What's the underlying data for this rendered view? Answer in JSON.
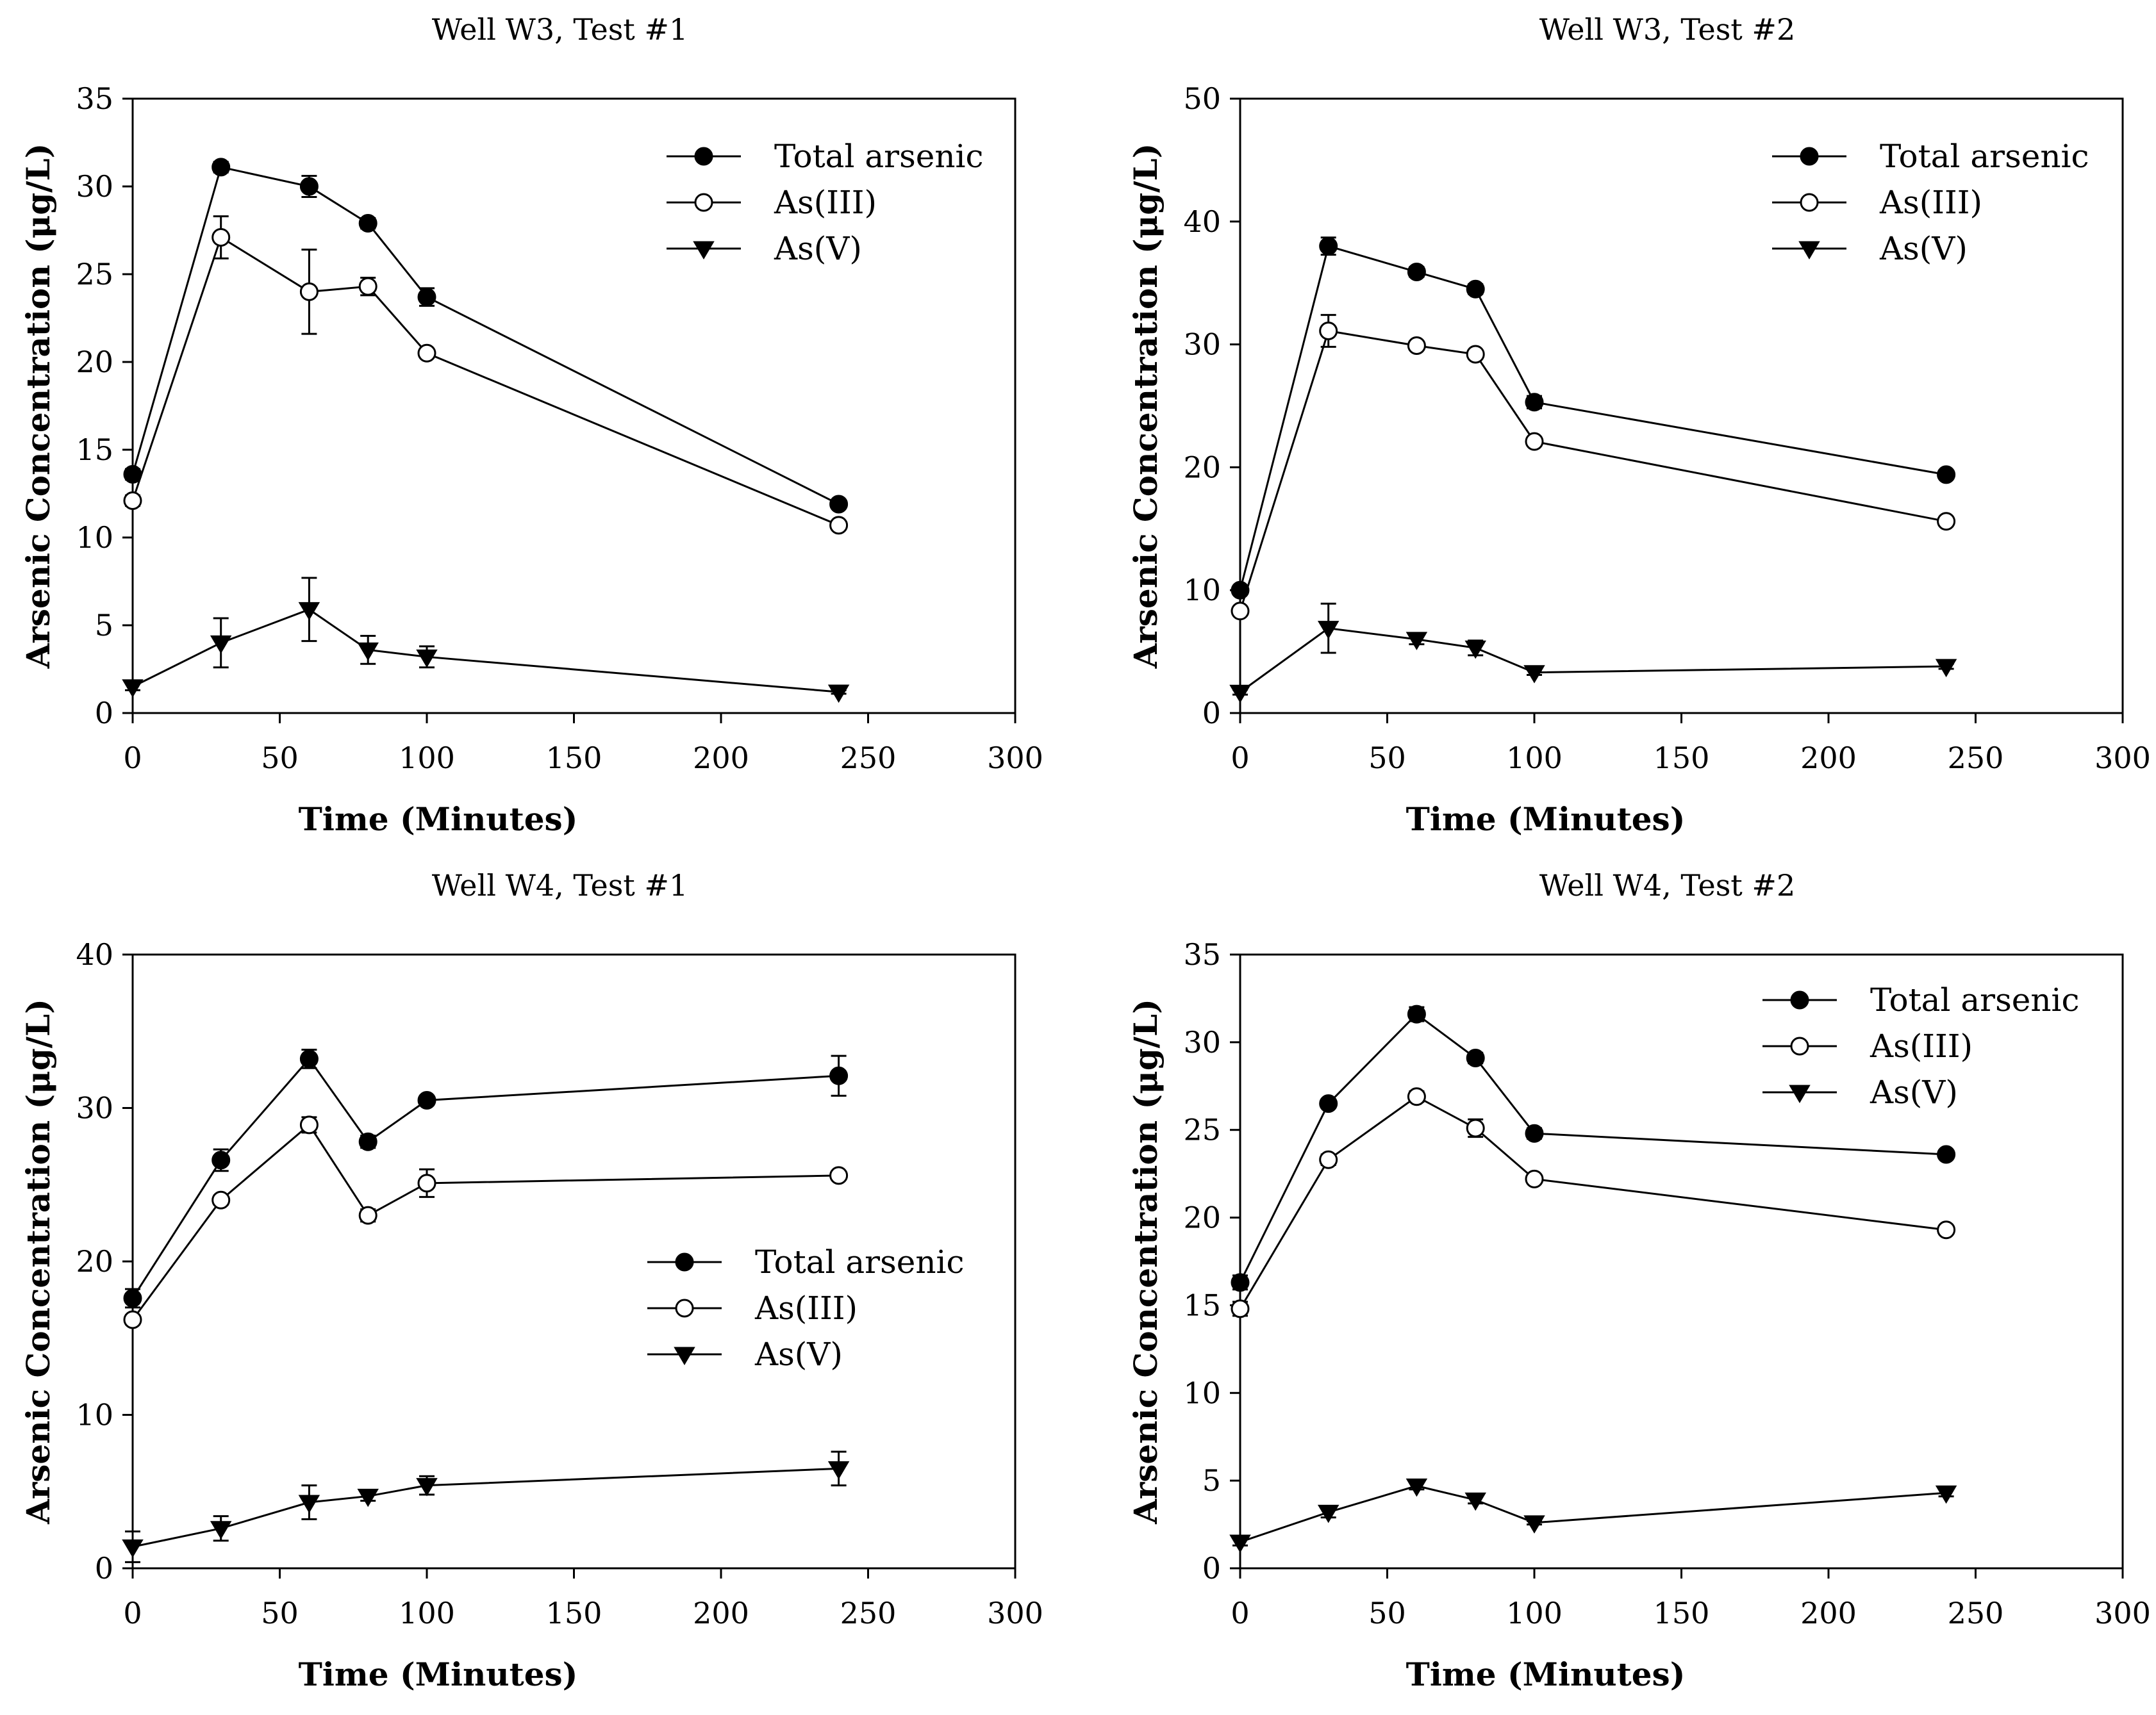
{
  "chart_data": [
    {
      "type": "line",
      "title": "Well W3, Test #1",
      "xlabel": "Time (Minutes)",
      "ylabel": "Arsenic Concentration (μg/L)",
      "xlim": [
        0,
        300
      ],
      "ylim": [
        0,
        35
      ],
      "xticks": [
        "0",
        "50",
        "100",
        "150",
        "200",
        "250",
        "300"
      ],
      "yticks": [
        "0",
        "5",
        "10",
        "15",
        "20",
        "25",
        "30",
        "35"
      ],
      "legend_position": "top-right",
      "x": [
        0,
        30,
        60,
        80,
        100,
        240
      ],
      "series": [
        {
          "name": "Total arsenic",
          "marker": "filled-circle",
          "values": [
            13.6,
            31.1,
            30.0,
            27.9,
            23.7,
            11.9
          ],
          "errors": [
            0.3,
            0.3,
            0.6,
            0.3,
            0.5,
            0.2
          ]
        },
        {
          "name": "As(III)",
          "marker": "open-circle",
          "values": [
            12.1,
            27.1,
            24.0,
            24.3,
            20.5,
            10.7
          ],
          "errors": [
            0.3,
            1.2,
            2.4,
            0.5,
            0.2,
            0.2
          ]
        },
        {
          "name": "As(V)",
          "marker": "filled-triangle-down",
          "values": [
            1.5,
            4.0,
            5.9,
            3.6,
            3.2,
            1.2
          ],
          "errors": [
            0.2,
            1.4,
            1.8,
            0.8,
            0.6,
            0.1
          ]
        }
      ]
    },
    {
      "type": "line",
      "title": "Well W3, Test #2",
      "xlabel": "Time (Minutes)",
      "ylabel": "Arsenic Concentration (μg/L)",
      "xlim": [
        0,
        300
      ],
      "ylim": [
        0,
        50
      ],
      "xticks": [
        "0",
        "50",
        "100",
        "150",
        "200",
        "250",
        "300"
      ],
      "yticks": [
        "0",
        "10",
        "20",
        "30",
        "40",
        "50"
      ],
      "legend_position": "top-right",
      "x": [
        0,
        30,
        60,
        80,
        100,
        240
      ],
      "series": [
        {
          "name": "Total arsenic",
          "marker": "filled-circle",
          "values": [
            10.0,
            38.0,
            35.9,
            34.5,
            25.3,
            19.4
          ],
          "errors": [
            0.3,
            0.7,
            0.4,
            0.4,
            0.5,
            0.2
          ]
        },
        {
          "name": "As(III)",
          "marker": "open-circle",
          "values": [
            8.3,
            31.1,
            29.9,
            29.2,
            22.1,
            15.6
          ],
          "errors": [
            0.3,
            1.3,
            0.3,
            0.3,
            0.3,
            0.2
          ]
        },
        {
          "name": "As(V)",
          "marker": "filled-triangle-down",
          "values": [
            1.7,
            6.9,
            6.0,
            5.3,
            3.3,
            3.8
          ],
          "errors": [
            0.2,
            2.0,
            0.4,
            0.6,
            0.2,
            0.2
          ]
        }
      ]
    },
    {
      "type": "line",
      "title": "Well W4, Test #1",
      "xlabel": "Time (Minutes)",
      "ylabel": "Arsenic Concentration (μg/L)",
      "xlim": [
        0,
        300
      ],
      "ylim": [
        0,
        40
      ],
      "xticks": [
        "0",
        "50",
        "100",
        "150",
        "200",
        "250",
        "300"
      ],
      "yticks": [
        "0",
        "10",
        "20",
        "30",
        "40"
      ],
      "legend_position": "center-right",
      "x": [
        0,
        30,
        60,
        80,
        100,
        240
      ],
      "series": [
        {
          "name": "Total arsenic",
          "marker": "filled-circle",
          "values": [
            17.6,
            26.6,
            33.2,
            27.8,
            30.5,
            32.1
          ],
          "errors": [
            0.6,
            0.7,
            0.6,
            0.4,
            0.3,
            1.3
          ]
        },
        {
          "name": "As(III)",
          "marker": "open-circle",
          "values": [
            16.2,
            24.0,
            28.9,
            23.0,
            25.1,
            25.6
          ],
          "errors": [
            0.3,
            0.3,
            0.5,
            0.4,
            0.9,
            0.2
          ]
        },
        {
          "name": "As(V)",
          "marker": "filled-triangle-down",
          "values": [
            1.4,
            2.6,
            4.3,
            4.7,
            5.4,
            6.5
          ],
          "errors": [
            1.0,
            0.8,
            1.1,
            0.3,
            0.6,
            1.1
          ]
        }
      ]
    },
    {
      "type": "line",
      "title": "Well W4, Test #2",
      "xlabel": "Time (Minutes)",
      "ylabel": "Arsenic Concentration (μg/L)",
      "xlim": [
        0,
        300
      ],
      "ylim": [
        0,
        35
      ],
      "xticks": [
        "0",
        "50",
        "100",
        "150",
        "200",
        "250",
        "300"
      ],
      "yticks": [
        "0",
        "5",
        "10",
        "15",
        "20",
        "25",
        "30",
        "35"
      ],
      "legend_position": "top-right",
      "x": [
        0,
        30,
        60,
        80,
        100,
        240
      ],
      "series": [
        {
          "name": "Total arsenic",
          "marker": "filled-circle",
          "values": [
            16.3,
            26.5,
            31.6,
            29.1,
            24.8,
            23.6
          ],
          "errors": [
            0.4,
            0.2,
            0.4,
            0.3,
            0.3,
            0.2
          ]
        },
        {
          "name": "As(III)",
          "marker": "open-circle",
          "values": [
            14.8,
            23.3,
            26.9,
            25.1,
            22.2,
            19.3
          ],
          "errors": [
            0.4,
            0.3,
            0.3,
            0.5,
            0.2,
            0.2
          ]
        },
        {
          "name": "As(V)",
          "marker": "filled-triangle-down",
          "values": [
            1.5,
            3.2,
            4.7,
            3.9,
            2.6,
            4.3
          ],
          "errors": [
            0.2,
            0.3,
            0.2,
            0.2,
            0.1,
            0.2
          ]
        }
      ]
    }
  ]
}
